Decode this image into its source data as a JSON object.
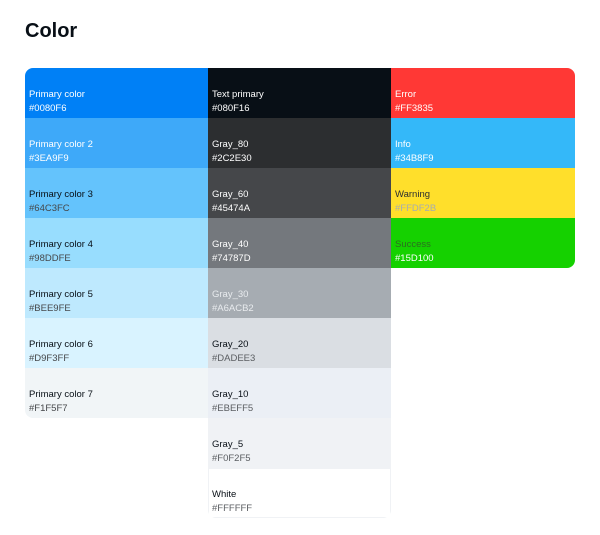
{
  "title": "Color",
  "columns": [
    [
      {
        "name": "Primary color",
        "hex": "#0080F6",
        "bg": "#0080F6",
        "name_color": "#FFFFFF",
        "hex_color": "#FFFFFF"
      },
      {
        "name": "Primary color 2",
        "hex": "#3EA9F9",
        "bg": "#3EA9F9",
        "name_color": "#FFFFFF",
        "hex_color": "#FFFFFF"
      },
      {
        "name": "Primary color 3",
        "hex": "#64C3FC",
        "bg": "#64C3FC",
        "name_color": "#080F16",
        "hex_color": "#45474A"
      },
      {
        "name": "Primary color 4",
        "hex": "#98DDFE",
        "bg": "#98DDFE",
        "name_color": "#080F16",
        "hex_color": "#45474A"
      },
      {
        "name": "Primary color 5",
        "hex": "#BEE9FE",
        "bg": "#BEE9FE",
        "name_color": "#080F16",
        "hex_color": "#45474A"
      },
      {
        "name": "Primary color 6",
        "hex": "#D9F3FF",
        "bg": "#D9F3FF",
        "name_color": "#080F16",
        "hex_color": "#45474A"
      },
      {
        "name": "Primary color 7",
        "hex": "#F1F5F7",
        "bg": "#F1F5F7",
        "name_color": "#080F16",
        "hex_color": "#45474A"
      }
    ],
    [
      {
        "name": "Text primary",
        "hex": "#080F16",
        "bg": "#080F16",
        "name_color": "#FFFFFF",
        "hex_color": "#FFFFFF"
      },
      {
        "name": "Gray_80",
        "hex": "#2C2E30",
        "bg": "#2C2E30",
        "name_color": "#FFFFFF",
        "hex_color": "#FFFFFF"
      },
      {
        "name": "Gray_60",
        "hex": "#45474A",
        "bg": "#45474A",
        "name_color": "#FFFFFF",
        "hex_color": "#FFFFFF"
      },
      {
        "name": "Gray_40",
        "hex": "#74787D",
        "bg": "#74787D",
        "name_color": "#FFFFFF",
        "hex_color": "#FFFFFF"
      },
      {
        "name": "Gray_30",
        "hex": "#A6ACB2",
        "bg": "#A6ACB2",
        "name_color": "#E8EBEE",
        "hex_color": "#E8EBEE"
      },
      {
        "name": "Gray_20",
        "hex": "#DADEE3",
        "bg": "#DADEE3",
        "name_color": "#080F16",
        "hex_color": "#5A5D61"
      },
      {
        "name": "Gray_10",
        "hex": "#EBEFF5",
        "bg": "#EBEFF5",
        "name_color": "#080F16",
        "hex_color": "#5A5D61"
      },
      {
        "name": "Gray_5",
        "hex": "#F0F2F5",
        "bg": "#F0F2F5",
        "name_color": "#080F16",
        "hex_color": "#5A5D61"
      },
      {
        "name": "White",
        "hex": "#FFFFFF",
        "bg": "#FFFFFF",
        "name_color": "#080F16",
        "hex_color": "#5A5D61"
      }
    ],
    [
      {
        "name": "Error",
        "hex": "#FF3835",
        "bg": "#FF3835",
        "name_color": "#FFFFFF",
        "hex_color": "#FFFFFF"
      },
      {
        "name": "Info",
        "hex": "#34B8F9",
        "bg": "#34B8F9",
        "name_color": "#FFFFFF",
        "hex_color": "#FFFFFF"
      },
      {
        "name": "Warning",
        "hex": "#FFDF2B",
        "bg": "#FFDF2B",
        "name_color": "#2C2E30",
        "hex_color": "#A6ACB2"
      },
      {
        "name": "Success",
        "hex": "#15D100",
        "bg": "#15D100",
        "name_color": "#2C6E20",
        "hex_color": "#FFFFFF"
      }
    ]
  ]
}
